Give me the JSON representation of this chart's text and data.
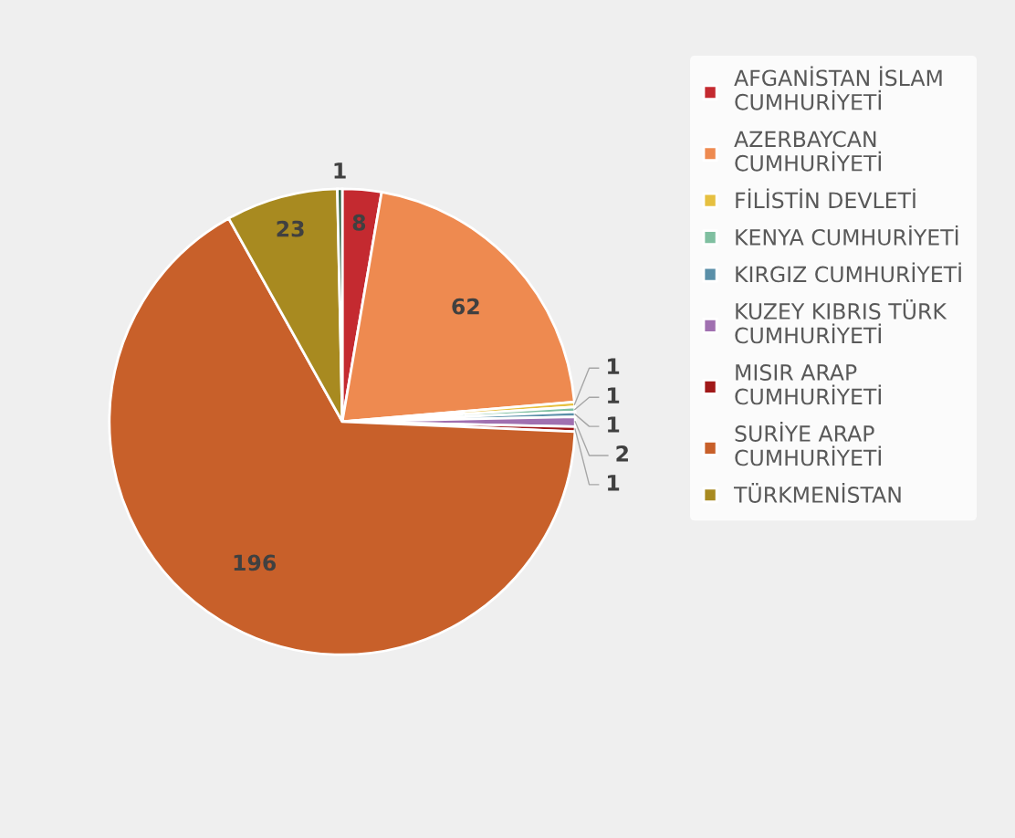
{
  "chart_data": {
    "type": "pie",
    "categories": [
      "AFGANİSTAN İSLAM CUMHURİYETİ",
      "AZERBAYCAN CUMHURİYETİ",
      "FİLİSTİN DEVLETİ",
      "KENYA CUMHURİYETİ",
      "KIRGIZ CUMHURİYETİ",
      "KUZEY KIBRIS TÜRK CUMHURİYETİ",
      "MISIR ARAP CUMHURİYETİ",
      "SURİYE ARAP CUMHURİYETİ",
      "TÜRKMENİSTAN",
      null
    ],
    "values": [
      8,
      62,
      1,
      1,
      1,
      2,
      1,
      196,
      23,
      1
    ],
    "colors": [
      "#c42a30",
      "#ee8a50",
      "#e6c040",
      "#7fbfa0",
      "#5a8fa8",
      "#a070b0",
      "#a01818",
      "#c8602a",
      "#a88a20",
      "#2e5e3e"
    ],
    "data_labels": true,
    "legend": "right"
  }
}
